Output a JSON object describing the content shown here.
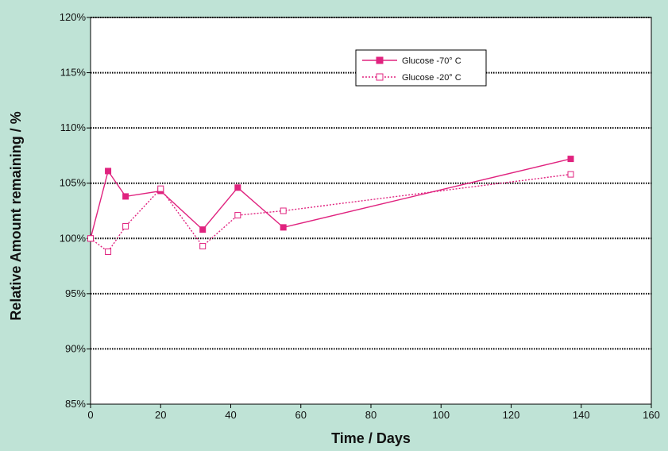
{
  "chart_data": {
    "type": "line",
    "title": "",
    "xlabel": "Time / Days",
    "ylabel": "Relative Amount remaining / %",
    "xlim": [
      0,
      160
    ],
    "ylim": [
      85,
      120
    ],
    "x_ticks": [
      "0",
      "20",
      "40",
      "60",
      "80",
      "100",
      "120",
      "140",
      "160"
    ],
    "y_ticks": [
      "85%",
      "90%",
      "95%",
      "100%",
      "105%",
      "110%",
      "115%",
      "120%"
    ],
    "grid": "horizontal dotted",
    "legend_position": "top-right",
    "series": [
      {
        "name": "Glucose -70° C",
        "color": "#e0237f",
        "style": "solid",
        "marker": "filled-square",
        "x": [
          0,
          5,
          10,
          20,
          32,
          42,
          55,
          137
        ],
        "y": [
          100.0,
          106.1,
          103.8,
          104.3,
          100.8,
          104.6,
          101.0,
          107.2
        ]
      },
      {
        "name": "Glucose -20° C",
        "color": "#e0237f",
        "style": "dotted",
        "marker": "open-square",
        "x": [
          0,
          5,
          10,
          20,
          32,
          42,
          55,
          137
        ],
        "y": [
          100.0,
          98.8,
          101.1,
          104.5,
          99.3,
          102.1,
          102.5,
          105.8
        ]
      }
    ]
  }
}
